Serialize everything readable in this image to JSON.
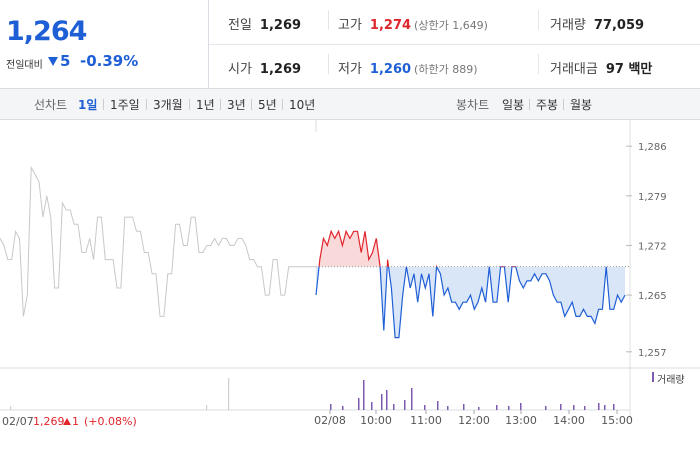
{
  "quote": {
    "current_price": "1,264",
    "change_label": "전일대비",
    "change_value": "5",
    "change_pct": "-0.39%"
  },
  "stats": {
    "prev_close_label": "전일",
    "prev_close": "1,269",
    "high_label": "고가",
    "high": "1,274",
    "upper_limit": "(상한가 1,649)",
    "volume_label": "거래량",
    "volume": "77,059",
    "open_label": "시가",
    "open": "1,269",
    "low_label": "저가",
    "low": "1,260",
    "lower_limit": "(하한가 889)",
    "amount_label": "거래대금",
    "amount": "97 백만"
  },
  "tabs": {
    "line_label": "선차트",
    "line_periods": [
      "1일",
      "1주일",
      "3개월",
      "1년",
      "3년",
      "5년",
      "10년"
    ],
    "active": "1일",
    "candle_label": "봉차트",
    "candle_periods": [
      "일봉",
      "주봉",
      "월봉"
    ]
  },
  "legend": {
    "volume": "거래량"
  },
  "prev_day": {
    "date": "02/07",
    "close": "1,269",
    "change": "1",
    "change_pct": "(+0.08%)"
  },
  "colors": {
    "up": "#e0252b",
    "down": "#1f5fd6",
    "prev": "#c8c8c8",
    "volume": "#7b5bb0"
  },
  "chart_data": {
    "type": "line",
    "reference_price": 1269,
    "ylim": [
      1255,
      1288
    ],
    "y_ticks": [
      "1,286",
      "1,279",
      "1,272",
      "1,265",
      "1,257"
    ],
    "y_tick_values": [
      1286,
      1279,
      1272,
      1265,
      1257
    ],
    "x_ticks": [
      "02/08",
      "10:00",
      "11:00",
      "12:00",
      "13:00",
      "14:00",
      "15:00"
    ],
    "prev_day_series": [
      1273,
      1272,
      1270,
      1270,
      1274,
      1273,
      1262,
      1265,
      1283,
      1282,
      1281,
      1276,
      1279,
      1276,
      1266,
      1266,
      1278,
      1277,
      1277,
      1275,
      1275,
      1271,
      1271,
      1273,
      1270,
      1276,
      1276,
      1270,
      1270,
      1270,
      1266,
      1266,
      1276,
      1276,
      1276,
      1274,
      1274,
      1271,
      1271,
      1268,
      1268,
      1262,
      1262,
      1268,
      1268,
      1275,
      1275,
      1272,
      1272,
      1276,
      1276,
      1271,
      1271,
      1272,
      1272,
      1273,
      1272,
      1273,
      1273,
      1272,
      1272,
      1273,
      1273,
      1272,
      1270,
      1270,
      1269,
      1269,
      1265,
      1265,
      1270,
      1270,
      1265,
      1265,
      1269,
      1269,
      1269,
      1269,
      1269,
      1269,
      1269,
      1269
    ],
    "today_series": [
      1265,
      1270,
      1273,
      1272,
      1274,
      1273,
      1274,
      1272,
      1274,
      1273,
      1274,
      1274,
      1271,
      1274,
      1270,
      1271,
      1273,
      1269,
      1260,
      1270,
      1266,
      1259,
      1259,
      1265,
      1269,
      1266,
      1268,
      1264,
      1268,
      1266,
      1268,
      1262,
      1269,
      1268,
      1265,
      1266,
      1264,
      1264,
      1263,
      1264,
      1264,
      1265,
      1263,
      1264,
      1266,
      1264,
      1269,
      1264,
      1264,
      1269,
      1269,
      1264,
      1269,
      1269,
      1267,
      1266,
      1267,
      1267,
      1268,
      1267,
      1268,
      1268,
      1267,
      1265,
      1264,
      1264,
      1262,
      1263,
      1264,
      1262,
      1262,
      1263,
      1262,
      1262,
      1261,
      1263,
      1263,
      1269,
      1263,
      1263,
      1265,
      1264,
      1265
    ]
  }
}
